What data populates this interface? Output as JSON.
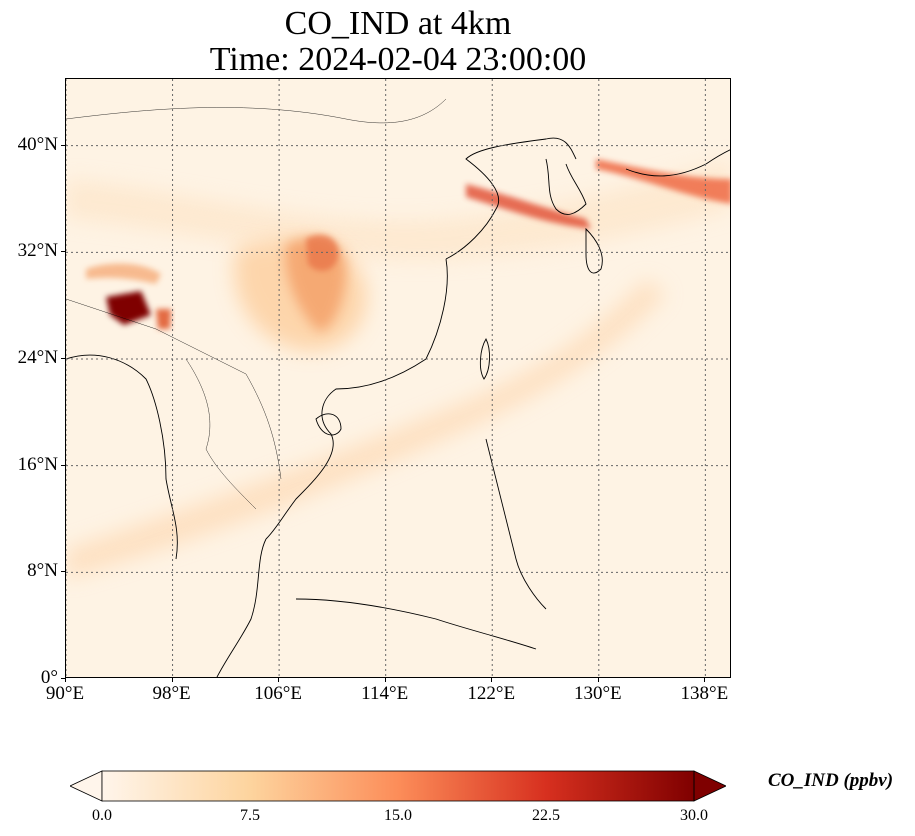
{
  "title": {
    "line1": "CO_IND at 4km",
    "line2": "Time: 2024-02-04 23:00:00"
  },
  "map": {
    "lon_range": [
      90,
      140
    ],
    "lat_range": [
      0,
      45
    ],
    "lat_ticks": [
      "40°N",
      "32°N",
      "24°N",
      "16°N",
      "8°N",
      "0°"
    ],
    "lon_ticks": [
      "90°E",
      "98°E",
      "106°E",
      "114°E",
      "122°E",
      "130°E",
      "138°E"
    ],
    "lat_tick_values": [
      40,
      32,
      24,
      16,
      8,
      0
    ],
    "lon_tick_values": [
      90,
      98,
      106,
      114,
      122,
      130,
      138
    ],
    "gridlines": "dotted gray",
    "colors": {
      "background": "#fef3e4",
      "low": "#fff5eb",
      "mid": "#fdae6b",
      "high": "#d94801",
      "max": "#7f0000"
    }
  },
  "colorbar": {
    "label": "CO_IND (ppbv)",
    "ticks": [
      "0.0",
      "7.5",
      "15.0",
      "22.5",
      "30.0"
    ],
    "tick_values": [
      0,
      7.5,
      15,
      22.5,
      30
    ],
    "range": [
      0,
      30
    ],
    "extend": "both",
    "colormap": "OrRd"
  }
}
